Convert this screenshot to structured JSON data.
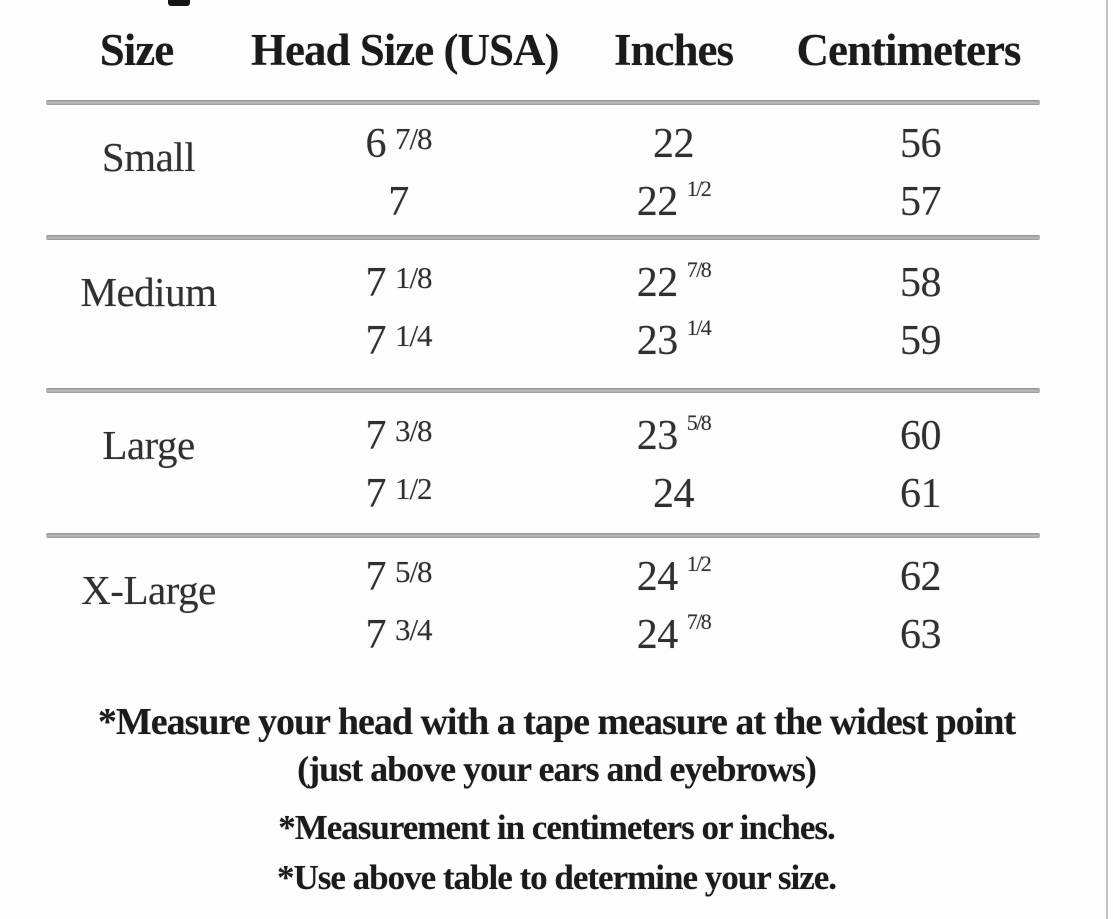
{
  "table": {
    "headers": {
      "size": "Size",
      "head_size": "Head Size (USA)",
      "inches": "Inches",
      "centimeters": "Centimeters"
    },
    "groups": [
      {
        "label": "Small",
        "rows": [
          {
            "head": "6",
            "head_frac": "7/8",
            "in": "22",
            "in_frac": "",
            "cm": "56"
          },
          {
            "head": "7",
            "head_frac": "",
            "in": "22",
            "in_frac": "1/2",
            "cm": "57"
          }
        ]
      },
      {
        "label": "Medium",
        "rows": [
          {
            "head": "7",
            "head_frac": "1/8",
            "in": "22",
            "in_frac": "7/8",
            "cm": "58"
          },
          {
            "head": "7",
            "head_frac": "1/4",
            "in": "23",
            "in_frac": "1/4",
            "cm": "59"
          }
        ]
      },
      {
        "label": "Large",
        "rows": [
          {
            "head": "7",
            "head_frac": "3/8",
            "in": "23",
            "in_frac": "5/8",
            "cm": "60"
          },
          {
            "head": "7",
            "head_frac": "1/2",
            "in": "24",
            "in_frac": "",
            "cm": "61"
          }
        ]
      },
      {
        "label": "X-Large",
        "rows": [
          {
            "head": "7",
            "head_frac": "5/8",
            "in": "24",
            "in_frac": "1/2",
            "cm": "62"
          },
          {
            "head": "7",
            "head_frac": "3/4",
            "in": "24",
            "in_frac": "7/8",
            "cm": "63"
          }
        ]
      }
    ]
  },
  "footnotes": {
    "measure_line1": "*Measure your head with a tape measure at the widest point",
    "measure_line2": "(just above your ears and eyebrows)",
    "units": "*Measurement in centimeters or inches.",
    "usage": "*Use above table to determine your size."
  },
  "colors": {
    "background": "#fdfdfd",
    "text": "#1b1b1b",
    "rule": "#9e9e9e"
  }
}
